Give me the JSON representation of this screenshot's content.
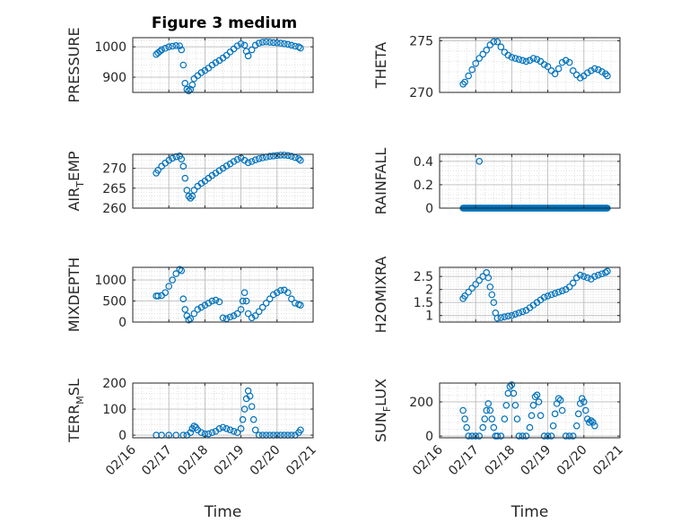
{
  "figure": {
    "title": "Figure 3 medium"
  },
  "colors": {
    "marker": "#0072BD",
    "grid": "#bdbdbd",
    "axis": "#262626",
    "background": "#ffffff"
  },
  "time_ticks": [
    "02/16",
    "02/17",
    "02/18",
    "02/19",
    "02/20",
    "02/21"
  ],
  "chart_data": [
    {
      "type": "scatter",
      "name": "pressure",
      "ylabel": "PRESSURE",
      "title": "Figure 3 medium",
      "xlim": [
        0,
        5
      ],
      "ylim": [
        850,
        1030
      ],
      "yticks": [
        900,
        1000
      ],
      "ytick_labels": [
        "900",
        "1000"
      ],
      "xticks": [
        0,
        1,
        2,
        3,
        4,
        5
      ],
      "xticklabels_visible": false,
      "x": [
        0.65,
        0.7,
        0.75,
        0.8,
        0.9,
        1.0,
        1.1,
        1.2,
        1.3,
        1.35,
        1.4,
        1.45,
        1.5,
        1.55,
        1.6,
        1.65,
        1.7,
        1.8,
        1.9,
        2.0,
        2.1,
        2.2,
        2.3,
        2.4,
        2.5,
        2.6,
        2.7,
        2.8,
        2.9,
        3.0,
        3.1,
        3.15,
        3.2,
        3.3,
        3.4,
        3.5,
        3.6,
        3.7,
        3.8,
        3.9,
        4.0,
        4.1,
        4.2,
        4.3,
        4.4,
        4.5,
        4.6,
        4.65
      ],
      "y": [
        975,
        980,
        985,
        990,
        995,
        1000,
        1002,
        1004,
        1003,
        990,
        940,
        880,
        860,
        855,
        860,
        875,
        895,
        905,
        915,
        922,
        930,
        940,
        948,
        955,
        963,
        972,
        983,
        993,
        1003,
        1010,
        1005,
        985,
        970,
        990,
        1005,
        1012,
        1015,
        1016,
        1015,
        1014,
        1013,
        1012,
        1010,
        1008,
        1005,
        1002,
        1000,
        996
      ]
    },
    {
      "type": "scatter",
      "name": "theta",
      "ylabel": "THETA",
      "xlim": [
        0,
        5
      ],
      "ylim": [
        270,
        275.3
      ],
      "yticks": [
        270,
        275
      ],
      "ytick_labels": [
        "270",
        "275"
      ],
      "xticks": [
        0,
        1,
        2,
        3,
        4,
        5
      ],
      "xticklabels_visible": false,
      "x": [
        0.65,
        0.7,
        0.8,
        0.9,
        1.0,
        1.1,
        1.2,
        1.3,
        1.4,
        1.5,
        1.6,
        1.7,
        1.8,
        1.9,
        2.0,
        2.1,
        2.2,
        2.3,
        2.4,
        2.5,
        2.6,
        2.7,
        2.8,
        2.9,
        3.0,
        3.1,
        3.2,
        3.3,
        3.4,
        3.5,
        3.6,
        3.7,
        3.8,
        3.9,
        4.0,
        4.1,
        4.2,
        4.3,
        4.4,
        4.5,
        4.6,
        4.65
      ],
      "y": [
        270.8,
        271.0,
        271.6,
        272.2,
        272.8,
        273.3,
        273.7,
        274.1,
        274.6,
        274.9,
        274.9,
        274.4,
        273.9,
        273.6,
        273.4,
        273.3,
        273.2,
        273.1,
        273.0,
        273.1,
        273.3,
        273.2,
        273.0,
        272.7,
        272.5,
        272.1,
        271.8,
        272.3,
        272.9,
        273.1,
        272.9,
        272.1,
        271.7,
        271.4,
        271.6,
        271.9,
        272.1,
        272.3,
        272.2,
        272.0,
        271.8,
        271.6
      ]
    },
    {
      "type": "scatter",
      "name": "air_temp",
      "ylabel": "AIR_TEMP",
      "ylabel_parts": [
        "AIR",
        "T",
        "EMP"
      ],
      "xlim": [
        0,
        5
      ],
      "ylim": [
        260,
        273.5
      ],
      "yticks": [
        260,
        265,
        270
      ],
      "ytick_labels": [
        "260",
        "265",
        "270"
      ],
      "xticks": [
        0,
        1,
        2,
        3,
        4,
        5
      ],
      "xticklabels_visible": false,
      "x": [
        0.65,
        0.7,
        0.8,
        0.9,
        1.0,
        1.1,
        1.2,
        1.3,
        1.35,
        1.4,
        1.45,
        1.5,
        1.55,
        1.6,
        1.65,
        1.7,
        1.8,
        1.9,
        2.0,
        2.1,
        2.2,
        2.3,
        2.4,
        2.5,
        2.6,
        2.7,
        2.8,
        2.9,
        3.0,
        3.1,
        3.2,
        3.3,
        3.4,
        3.5,
        3.6,
        3.7,
        3.8,
        3.9,
        4.0,
        4.1,
        4.2,
        4.3,
        4.4,
        4.5,
        4.6,
        4.65
      ],
      "y": [
        268.8,
        269.5,
        270.5,
        271.3,
        272.0,
        272.5,
        272.9,
        273.1,
        272.3,
        270.5,
        267.5,
        264.5,
        263.0,
        262.5,
        263.0,
        264.5,
        265.5,
        266.2,
        266.8,
        267.5,
        268.2,
        268.8,
        269.4,
        270.0,
        270.6,
        271.1,
        271.7,
        272.2,
        272.6,
        272.0,
        271.4,
        271.7,
        272.1,
        272.4,
        272.6,
        272.8,
        273.0,
        273.1,
        273.2,
        273.3,
        273.3,
        273.2,
        273.0,
        272.7,
        272.4,
        272.0
      ]
    },
    {
      "type": "scatter",
      "name": "rainfall",
      "ylabel": "RAINFALL",
      "xlim": [
        0,
        5
      ],
      "ylim": [
        0,
        0.46
      ],
      "yticks": [
        0,
        0.2,
        0.4
      ],
      "ytick_labels": [
        "0",
        "0.2",
        "0.4"
      ],
      "xticks": [
        0,
        1,
        2,
        3,
        4,
        5
      ],
      "xticklabels_visible": false,
      "x": [
        1.1
      ],
      "y": [
        0.4
      ],
      "zero_run": [
        0.65,
        4.65
      ]
    },
    {
      "type": "scatter",
      "name": "mixdepth",
      "ylabel": "MIXDEPTH",
      "xlim": [
        0,
        5
      ],
      "ylim": [
        0,
        1300
      ],
      "yticks": [
        0,
        500,
        1000
      ],
      "ytick_labels": [
        "0",
        "500",
        "1000"
      ],
      "xticks": [
        0,
        1,
        2,
        3,
        4,
        5
      ],
      "xticklabels_visible": false,
      "x": [
        0.65,
        0.7,
        0.8,
        0.9,
        1.0,
        1.1,
        1.2,
        1.3,
        1.35,
        1.4,
        1.45,
        1.5,
        1.55,
        1.6,
        1.7,
        1.8,
        1.9,
        2.0,
        2.1,
        2.2,
        2.3,
        2.4,
        2.5,
        2.6,
        2.7,
        2.8,
        2.9,
        3.0,
        3.05,
        3.1,
        3.15,
        3.2,
        3.3,
        3.4,
        3.5,
        3.6,
        3.7,
        3.8,
        3.9,
        4.0,
        4.1,
        4.2,
        4.3,
        4.4,
        4.5,
        4.6,
        4.65
      ],
      "y": [
        620,
        620,
        630,
        700,
        850,
        1000,
        1150,
        1250,
        1220,
        550,
        300,
        150,
        50,
        80,
        200,
        300,
        350,
        400,
        450,
        500,
        520,
        480,
        100,
        80,
        120,
        150,
        200,
        300,
        500,
        700,
        500,
        200,
        100,
        150,
        250,
        350,
        450,
        550,
        650,
        700,
        750,
        760,
        700,
        550,
        450,
        420,
        400
      ]
    },
    {
      "type": "scatter",
      "name": "h2omixra",
      "ylabel": "H2OMIXRA",
      "xlim": [
        0,
        5
      ],
      "ylim": [
        0.75,
        2.85
      ],
      "yticks": [
        1,
        1.5,
        2,
        2.5
      ],
      "ytick_labels": [
        "1",
        "1.5",
        "2",
        "2.5"
      ],
      "xticks": [
        0,
        1,
        2,
        3,
        4,
        5
      ],
      "xticklabels_visible": false,
      "x": [
        0.65,
        0.7,
        0.8,
        0.9,
        1.0,
        1.1,
        1.2,
        1.3,
        1.35,
        1.4,
        1.45,
        1.5,
        1.55,
        1.6,
        1.7,
        1.8,
        1.9,
        2.0,
        2.1,
        2.2,
        2.3,
        2.4,
        2.5,
        2.6,
        2.7,
        2.8,
        2.9,
        3.0,
        3.1,
        3.2,
        3.3,
        3.4,
        3.5,
        3.6,
        3.7,
        3.8,
        3.9,
        4.0,
        4.1,
        4.2,
        4.3,
        4.4,
        4.5,
        4.6,
        4.65
      ],
      "y": [
        1.65,
        1.75,
        1.9,
        2.05,
        2.2,
        2.35,
        2.5,
        2.65,
        2.45,
        2.1,
        1.8,
        1.5,
        1.1,
        0.9,
        0.92,
        0.95,
        0.98,
        1.0,
        1.05,
        1.1,
        1.15,
        1.2,
        1.3,
        1.4,
        1.5,
        1.6,
        1.7,
        1.75,
        1.8,
        1.85,
        1.9,
        1.95,
        2.0,
        2.1,
        2.25,
        2.45,
        2.55,
        2.5,
        2.45,
        2.4,
        2.5,
        2.55,
        2.6,
        2.65,
        2.7
      ]
    },
    {
      "type": "scatter",
      "name": "terr_msl",
      "ylabel": "TERR_MSL",
      "ylabel_parts": [
        "TERR",
        "M",
        "SL"
      ],
      "xlim": [
        0,
        5
      ],
      "ylim": [
        -10,
        200
      ],
      "yticks": [
        0,
        100,
        200
      ],
      "ytick_labels": [
        "0",
        "100",
        "200"
      ],
      "xticks": [
        0,
        1,
        2,
        3,
        4,
        5
      ],
      "xticklabels_visible": true,
      "x": [
        0.65,
        0.8,
        1.0,
        1.2,
        1.4,
        1.5,
        1.6,
        1.65,
        1.7,
        1.75,
        1.8,
        1.9,
        2.0,
        2.1,
        2.2,
        2.3,
        2.4,
        2.5,
        2.6,
        2.7,
        2.8,
        2.9,
        3.0,
        3.05,
        3.1,
        3.15,
        3.2,
        3.25,
        3.3,
        3.35,
        3.4,
        3.5,
        3.6,
        3.7,
        3.8,
        3.9,
        4.0,
        4.1,
        4.2,
        4.3,
        4.4,
        4.5,
        4.6,
        4.65
      ],
      "y": [
        0,
        0,
        0,
        0,
        0,
        0,
        10,
        25,
        35,
        30,
        20,
        10,
        5,
        5,
        10,
        15,
        25,
        30,
        25,
        20,
        15,
        10,
        25,
        60,
        100,
        140,
        170,
        150,
        110,
        60,
        20,
        0,
        0,
        0,
        0,
        0,
        0,
        0,
        0,
        0,
        0,
        0,
        10,
        20
      ]
    },
    {
      "type": "scatter",
      "name": "sun_flux",
      "ylabel": "SUN_FLUX",
      "ylabel_parts": [
        "SUN",
        "F",
        "LUX"
      ],
      "xlim": [
        0,
        5
      ],
      "ylim": [
        -10,
        310
      ],
      "yticks": [
        0,
        200
      ],
      "ytick_labels": [
        "0",
        "200"
      ],
      "xticks": [
        0,
        1,
        2,
        3,
        4,
        5
      ],
      "xticklabels_visible": true,
      "x": [
        0.65,
        0.7,
        0.75,
        0.8,
        0.9,
        1.0,
        1.1,
        1.2,
        1.25,
        1.3,
        1.35,
        1.4,
        1.45,
        1.5,
        1.55,
        1.6,
        1.7,
        1.8,
        1.85,
        1.9,
        1.95,
        2.0,
        2.05,
        2.1,
        2.15,
        2.2,
        2.3,
        2.4,
        2.5,
        2.55,
        2.6,
        2.65,
        2.7,
        2.75,
        2.8,
        2.9,
        3.0,
        3.1,
        3.15,
        3.2,
        3.25,
        3.3,
        3.35,
        3.4,
        3.5,
        3.6,
        3.7,
        3.8,
        3.85,
        3.9,
        3.95,
        4.0,
        4.05,
        4.1,
        4.15,
        4.2,
        4.25,
        4.3
      ],
      "y": [
        150,
        100,
        50,
        0,
        0,
        0,
        0,
        50,
        100,
        150,
        190,
        150,
        100,
        50,
        0,
        0,
        0,
        100,
        180,
        250,
        290,
        300,
        250,
        180,
        100,
        0,
        0,
        0,
        50,
        120,
        180,
        230,
        240,
        200,
        120,
        0,
        0,
        0,
        60,
        130,
        190,
        220,
        210,
        150,
        0,
        0,
        0,
        60,
        130,
        190,
        220,
        200,
        150,
        100,
        80,
        90,
        80,
        60
      ]
    }
  ],
  "xlabel": "Time"
}
